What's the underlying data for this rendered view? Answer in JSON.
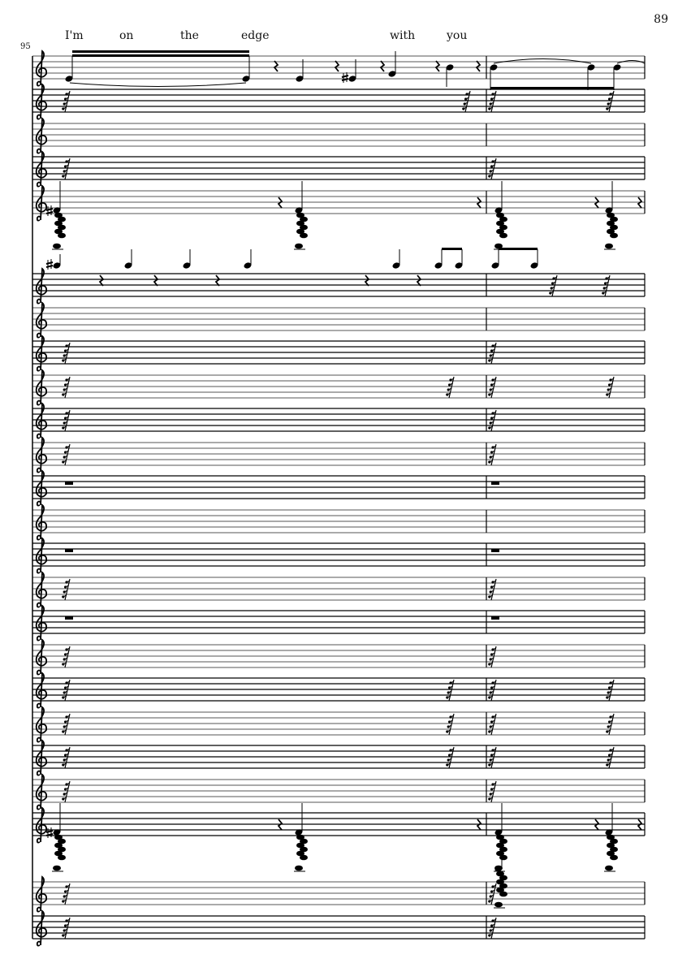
{
  "page": {
    "number": "89"
  },
  "system": {
    "measure_number": "95"
  },
  "lyrics": [
    "I'm",
    "on",
    "the",
    "edge",
    "with",
    "you"
  ],
  "colors": {
    "ink": "#000000",
    "staff_gray": "#777777"
  }
}
